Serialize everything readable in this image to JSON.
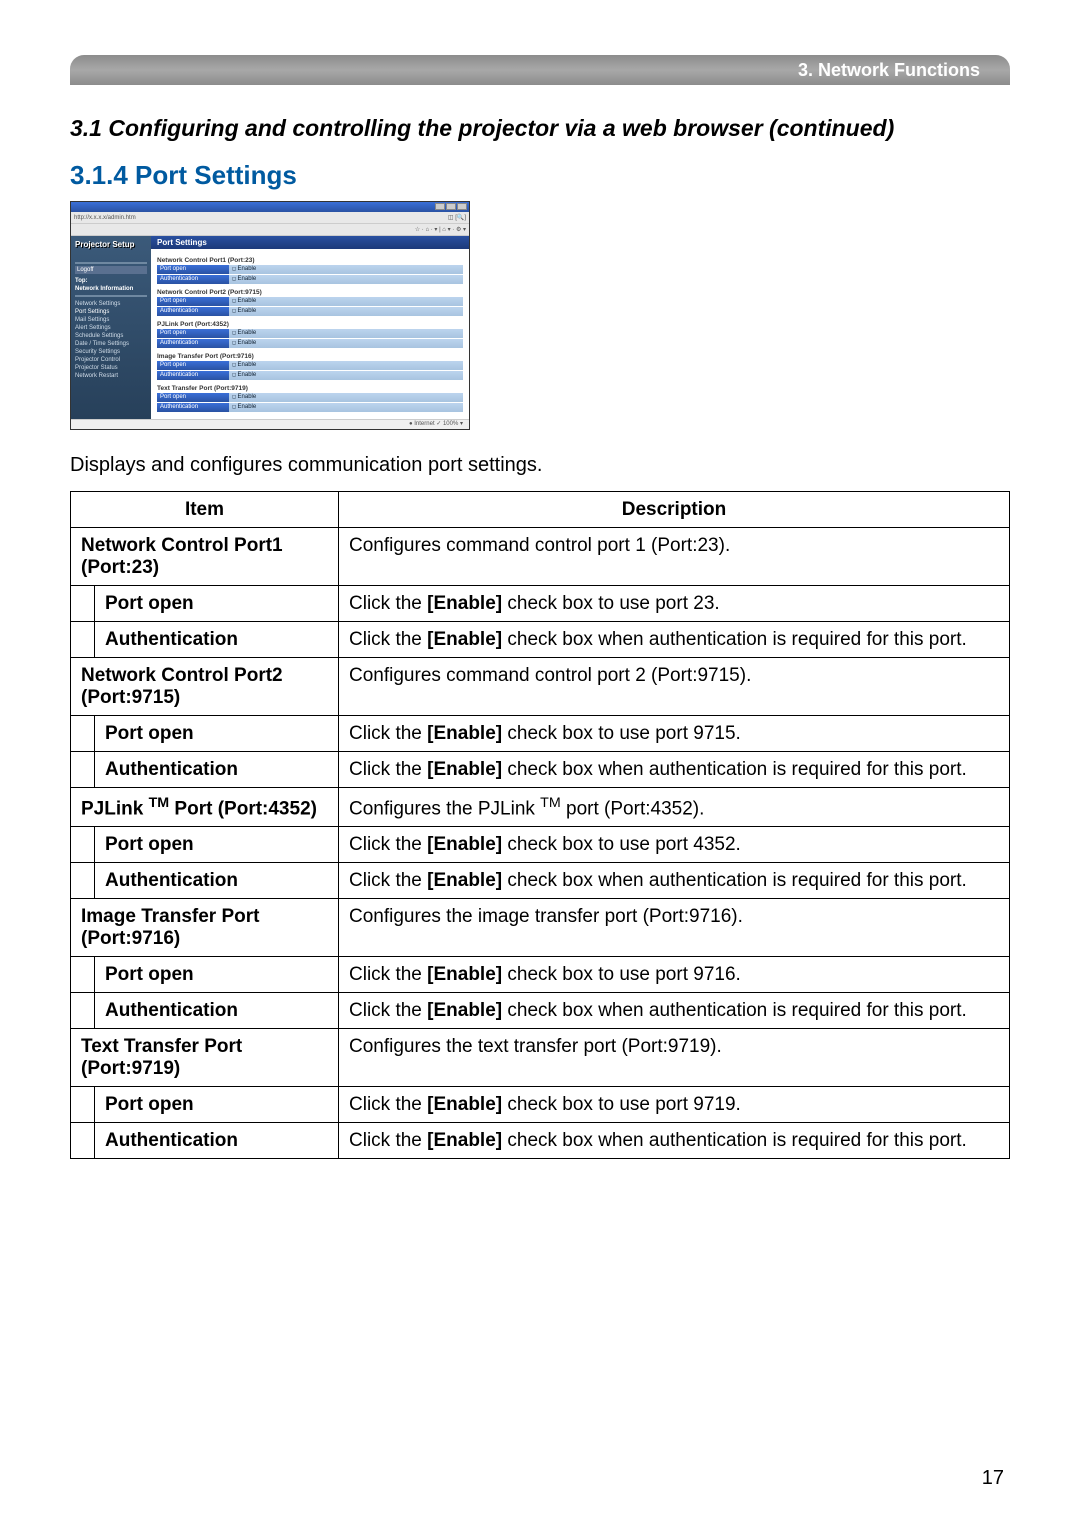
{
  "header": {
    "tab": "3. Network Functions"
  },
  "titles": {
    "section": "3.1 Configuring and controlling the projector via a web browser (continued)",
    "subsection": "3.1.4 Port Settings"
  },
  "screenshot": {
    "address": "http://x.x.x.x/admin.htm",
    "toolbar_right": "☆ · ⌂ ·  ▾ | ⌂ ▾ · ⚙ ▾",
    "logo": "Projector Setup",
    "panel_title": "Port Settings",
    "sidebar": {
      "logoff": "Logoff",
      "top": "Top:",
      "net_info": "Network Information",
      "items": [
        "Network Settings",
        "Port Settings",
        "Mail Settings",
        "Alert Settings",
        "Schedule Settings",
        "Date / Time Settings",
        "Security Settings",
        "Projector Control",
        "Projector Status",
        "Network Restart"
      ]
    },
    "groups": [
      {
        "title": "Network Control Port1 (Port:23)",
        "rows": [
          {
            "l": "Port open",
            "v": "Enable"
          },
          {
            "l": "Authentication",
            "v": "Enable"
          }
        ]
      },
      {
        "title": "Network Control Port2 (Port:9715)",
        "rows": [
          {
            "l": "Port open",
            "v": "Enable"
          },
          {
            "l": "Authentication",
            "v": "Enable"
          }
        ]
      },
      {
        "title": "PJLink Port (Port:4352)",
        "rows": [
          {
            "l": "Port open",
            "v": "Enable"
          },
          {
            "l": "Authentication",
            "v": "Enable"
          }
        ]
      },
      {
        "title": "Image Transfer Port (Port:9716)",
        "rows": [
          {
            "l": "Port open",
            "v": "Enable"
          },
          {
            "l": "Authentication",
            "v": "Enable"
          }
        ]
      },
      {
        "title": "Text Transfer Port (Port:9719)",
        "rows": [
          {
            "l": "Port open",
            "v": "Enable"
          },
          {
            "l": "Authentication",
            "v": "Enable"
          }
        ]
      }
    ],
    "status_left": "",
    "status_right": "● Internet        ✓ 100% ▾"
  },
  "paragraph": "Displays and configures communication port settings.",
  "table": {
    "header_item": "Item",
    "header_desc": "Description",
    "rows": [
      {
        "type": "main",
        "item": "Network Control Port1 (Port:23)",
        "desc": "Configures command control port 1 (Port:23)."
      },
      {
        "type": "sub",
        "item": "Port open",
        "desc": "Click the <b>[Enable]</b> check box to use port 23."
      },
      {
        "type": "sub",
        "item": "Authentication",
        "desc": "Click the <b>[Enable]</b> check box when authentication is required for this port."
      },
      {
        "type": "main",
        "item": "Network Control Port2 (Port:9715)",
        "desc": "Configures command control port 2 (Port:9715)."
      },
      {
        "type": "sub",
        "item": "Port open",
        "desc": "Click the <b>[Enable]</b> check box to use port 9715."
      },
      {
        "type": "sub",
        "item": "Authentication",
        "desc": "Click the <b>[Enable]</b> check box when authentication is required for this port."
      },
      {
        "type": "main",
        "item_html": "PJLink <span class='tm'>TM</span> Port (Port:4352)",
        "desc_html": "Configures the PJLink <span class='tm'>TM</span> port (Port:4352)."
      },
      {
        "type": "sub",
        "item": "Port open",
        "desc": "Click the <b>[Enable]</b> check box to use port 4352."
      },
      {
        "type": "sub",
        "item": "Authentication",
        "desc": "Click the <b>[Enable]</b> check box when authentication is required for this port."
      },
      {
        "type": "main",
        "item": "Image Transfer Port (Port:9716)",
        "desc": "Configures the image transfer port (Port:9716)."
      },
      {
        "type": "sub",
        "item": "Port open",
        "desc": "Click the <b>[Enable]</b> check box to use port 9716."
      },
      {
        "type": "sub",
        "item": "Authentication",
        "desc": "Click the <b>[Enable]</b> check box when authentication is required for this port."
      },
      {
        "type": "main",
        "item": "Text Transfer Port (Port:9719)",
        "desc": "Configures the text transfer port (Port:9719)."
      },
      {
        "type": "sub",
        "item": "Port open",
        "desc": "Click the <b>[Enable]</b> check box to use port 9719."
      },
      {
        "type": "sub",
        "item": "Authentication",
        "desc": "Click the <b>[Enable]</b> check box when authentication is required for this port."
      }
    ]
  },
  "page_number": "17"
}
